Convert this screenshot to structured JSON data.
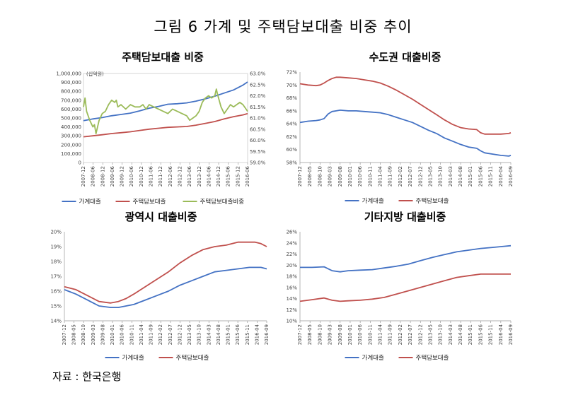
{
  "figure_title": "그림 6 가계 및 주택담보대출 비중 추이",
  "source": "자료 : 한국은행",
  "colors": {
    "household": "#4472c4",
    "mortgage": "#c0504d",
    "ratio": "#9bbb59",
    "axis": "#999999"
  },
  "x_ticks": [
    "2007-12",
    "2008-05",
    "2008-10",
    "2009-03",
    "2009-08",
    "2010-01",
    "2010-06",
    "2010-11",
    "2011-04",
    "2011-09",
    "2012-02",
    "2012-07",
    "2012-12",
    "2013-05",
    "2013-10",
    "2014-03",
    "2014-08",
    "2015-01",
    "2015-06",
    "2015-11",
    "2016-04",
    "2016-09"
  ],
  "x_ticks_p1": [
    "2007-12",
    "2008-06",
    "2008-12",
    "2009-06",
    "2009-12",
    "2010-06",
    "2010-12",
    "2011-06",
    "2011-12",
    "2012-06",
    "2012-12",
    "2013-06",
    "2013-12",
    "2014-06",
    "2014-12",
    "2015-06",
    "2015-12",
    "2016-06"
  ],
  "chart_data": [
    {
      "type": "line",
      "title": "주택담보대출 비중",
      "unit_label": "(십억원)",
      "y_left": {
        "ticks": [
          "0",
          "100,000",
          "200,000",
          "300,000",
          "400,000",
          "500,000",
          "600,000",
          "700,000",
          "800,000",
          "900,000",
          "1,000,000"
        ],
        "lim": [
          0,
          1000000
        ]
      },
      "y_right": {
        "ticks": [
          "59.0%",
          "59.5%",
          "60.0%",
          "60.5%",
          "61.0%",
          "61.5%",
          "62.0%",
          "62.5%",
          "63.0%"
        ],
        "lim": [
          59.0,
          63.0
        ]
      },
      "x_range": [
        "2007-12",
        "2016-09"
      ],
      "series": [
        {
          "name": "가계대출",
          "axis": "left",
          "color": "#4472c4",
          "t": [
            0,
            6,
            12,
            18,
            24,
            30,
            36,
            42,
            48,
            54,
            60,
            66,
            72,
            78,
            84,
            90,
            96,
            102,
            105
          ],
          "values": [
            470000,
            490000,
            505000,
            525000,
            540000,
            555000,
            580000,
            610000,
            630000,
            655000,
            660000,
            670000,
            690000,
            715000,
            745000,
            780000,
            815000,
            870000,
            905000
          ]
        },
        {
          "name": "주택담보대출",
          "axis": "right",
          "color": "#c0504d",
          "t": [
            0,
            6,
            12,
            18,
            24,
            30,
            36,
            42,
            48,
            54,
            60,
            66,
            72,
            78,
            84,
            90,
            96,
            102,
            105
          ],
          "values": [
            289000,
            300000,
            312000,
            325000,
            335000,
            345000,
            360000,
            375000,
            385000,
            395000,
            400000,
            405000,
            420000,
            440000,
            460000,
            490000,
            515000,
            535000,
            550000
          ]
        },
        {
          "name": "주택담보대출비중",
          "axis": "right",
          "color": "#9bbb59",
          "t": [
            0,
            1,
            2,
            4,
            6,
            7,
            8,
            10,
            12,
            14,
            16,
            18,
            20,
            21,
            22,
            24,
            27,
            30,
            33,
            36,
            38,
            40,
            42,
            45,
            48,
            51,
            54,
            57,
            60,
            63,
            66,
            68,
            70,
            72,
            74,
            76,
            78,
            80,
            82,
            84,
            85,
            86,
            88,
            90,
            92,
            94,
            96,
            98,
            100,
            102,
            104,
            105
          ],
          "values": [
            61.5,
            61.9,
            61.3,
            60.9,
            60.6,
            60.7,
            60.3,
            60.9,
            61.2,
            61.3,
            61.6,
            61.8,
            61.7,
            61.8,
            61.5,
            61.6,
            61.4,
            61.6,
            61.5,
            61.5,
            61.6,
            61.4,
            61.6,
            61.5,
            61.4,
            61.3,
            61.2,
            61.4,
            61.3,
            61.2,
            61.1,
            60.9,
            61.0,
            61.1,
            61.3,
            61.7,
            61.9,
            62.0,
            61.9,
            62.0,
            62.3,
            62.0,
            61.5,
            61.2,
            61.4,
            61.6,
            61.5,
            61.6,
            61.7,
            61.6,
            61.4,
            61.3
          ]
        }
      ],
      "legend": [
        "가계대출",
        "주택담보대출",
        "주택담보대출비중"
      ]
    },
    {
      "type": "line",
      "title": "수도권 대출비중",
      "y_ticks": [
        "58%",
        "60%",
        "62%",
        "64%",
        "66%",
        "68%",
        "70%",
        "72%"
      ],
      "ylim": [
        58,
        72
      ],
      "series": [
        {
          "name": "가계대출",
          "color": "#4472c4",
          "t": [
            0,
            4,
            8,
            10,
            12,
            14,
            16,
            18,
            20,
            24,
            28,
            32,
            36,
            40,
            44,
            48,
            52,
            56,
            60,
            64,
            68,
            72,
            76,
            80,
            84,
            88,
            90,
            92,
            96,
            100,
            104,
            105
          ],
          "values": [
            64.2,
            64.4,
            64.5,
            64.6,
            64.8,
            65.5,
            65.9,
            66.0,
            66.1,
            66.0,
            66.0,
            65.9,
            65.8,
            65.7,
            65.4,
            65.0,
            64.6,
            64.2,
            63.6,
            63.0,
            62.5,
            61.8,
            61.3,
            60.8,
            60.4,
            60.2,
            59.8,
            59.5,
            59.3,
            59.1,
            59.0,
            59.1
          ]
        },
        {
          "name": "주택담보대출",
          "color": "#c0504d",
          "t": [
            0,
            4,
            8,
            10,
            12,
            14,
            16,
            18,
            20,
            24,
            28,
            32,
            36,
            40,
            44,
            48,
            52,
            56,
            60,
            64,
            68,
            72,
            76,
            80,
            84,
            88,
            90,
            92,
            96,
            100,
            104,
            105
          ],
          "values": [
            70.2,
            70.0,
            69.9,
            70.0,
            70.3,
            70.7,
            71.0,
            71.2,
            71.2,
            71.1,
            71.0,
            70.8,
            70.6,
            70.3,
            69.8,
            69.2,
            68.5,
            67.8,
            67.0,
            66.2,
            65.4,
            64.6,
            63.9,
            63.4,
            63.2,
            63.1,
            62.6,
            62.4,
            62.4,
            62.4,
            62.5,
            62.6
          ]
        }
      ],
      "legend": [
        "가계대출",
        "주택담보대출"
      ]
    },
    {
      "type": "line",
      "title": "광역시 대출비중",
      "y_ticks": [
        "14%",
        "15%",
        "16%",
        "17%",
        "18%",
        "19%",
        "20%"
      ],
      "ylim": [
        14,
        20
      ],
      "series": [
        {
          "name": "가계대출",
          "color": "#4472c4",
          "t": [
            0,
            6,
            12,
            18,
            24,
            28,
            32,
            36,
            42,
            48,
            54,
            60,
            66,
            72,
            78,
            84,
            90,
            96,
            99,
            102,
            105
          ],
          "values": [
            16.1,
            15.8,
            15.4,
            15.0,
            14.9,
            14.9,
            15.0,
            15.1,
            15.4,
            15.7,
            16.0,
            16.4,
            16.7,
            17.0,
            17.3,
            17.4,
            17.5,
            17.6,
            17.6,
            17.6,
            17.5
          ]
        },
        {
          "name": "주택담보대출",
          "color": "#c0504d",
          "t": [
            0,
            6,
            12,
            18,
            24,
            28,
            32,
            36,
            42,
            48,
            54,
            60,
            66,
            72,
            78,
            84,
            90,
            96,
            99,
            102,
            105
          ],
          "values": [
            16.3,
            16.1,
            15.7,
            15.3,
            15.2,
            15.3,
            15.5,
            15.8,
            16.3,
            16.8,
            17.3,
            17.9,
            18.4,
            18.8,
            19.0,
            19.1,
            19.3,
            19.3,
            19.3,
            19.2,
            19.0
          ]
        }
      ],
      "legend": [
        "가계대출",
        "주택담보대출"
      ]
    },
    {
      "type": "line",
      "title": "기타지방 대출비중",
      "y_ticks": [
        "10%",
        "12%",
        "14%",
        "16%",
        "18%",
        "20%",
        "22%",
        "24%",
        "26%"
      ],
      "ylim": [
        10,
        26
      ],
      "series": [
        {
          "name": "가계대출",
          "color": "#4472c4",
          "t": [
            0,
            6,
            12,
            16,
            20,
            24,
            30,
            36,
            42,
            48,
            54,
            60,
            66,
            72,
            78,
            84,
            90,
            96,
            102,
            105
          ],
          "values": [
            19.6,
            19.6,
            19.7,
            19.0,
            18.8,
            19.0,
            19.1,
            19.2,
            19.5,
            19.8,
            20.2,
            20.8,
            21.4,
            21.9,
            22.4,
            22.7,
            23.0,
            23.2,
            23.4,
            23.5
          ]
        },
        {
          "name": "주택담보대출",
          "color": "#c0504d",
          "t": [
            0,
            6,
            12,
            16,
            20,
            24,
            30,
            36,
            42,
            48,
            54,
            60,
            66,
            72,
            78,
            84,
            90,
            96,
            102,
            105
          ],
          "values": [
            13.5,
            13.8,
            14.1,
            13.7,
            13.5,
            13.6,
            13.7,
            13.9,
            14.2,
            14.8,
            15.4,
            16.0,
            16.6,
            17.2,
            17.8,
            18.1,
            18.4,
            18.4,
            18.4,
            18.4
          ]
        }
      ],
      "legend": [
        "가계대출",
        "주택담보대출"
      ]
    }
  ]
}
